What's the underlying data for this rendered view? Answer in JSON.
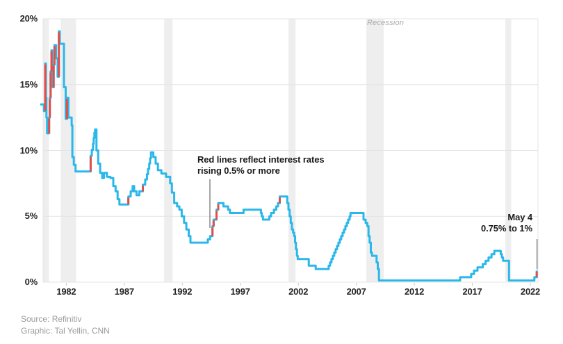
{
  "chart_data": {
    "type": "line",
    "subtype": "step",
    "title": "",
    "ylabel": "",
    "xlabel": "",
    "x_range": [
      1980,
      2022.66
    ],
    "y_range": [
      0,
      20
    ],
    "grid": true,
    "x_ticks": [
      1982,
      1987,
      1992,
      1997,
      2002,
      2007,
      2012,
      2017,
      2022
    ],
    "y_ticks": [
      {
        "value": 0,
        "label": "0%"
      },
      {
        "value": 5,
        "label": "5%"
      },
      {
        "value": 10,
        "label": "10%"
      },
      {
        "value": 15,
        "label": "15%"
      },
      {
        "value": 20,
        "label": "20%"
      }
    ],
    "red_rise_threshold": 0.5,
    "recessions": [
      [
        1980.0,
        1980.5
      ],
      [
        1981.52,
        1982.84
      ],
      [
        1990.44,
        1991.16
      ],
      [
        2001.16,
        2001.76
      ],
      [
        2007.87,
        2009.36
      ],
      [
        2019.85,
        2020.35
      ]
    ],
    "series": [
      {
        "name": "Interest rate",
        "points": [
          [
            1979.75,
            13.5
          ],
          [
            1980.07,
            13.0
          ],
          [
            1980.18,
            16.6
          ],
          [
            1980.24,
            14.0
          ],
          [
            1980.29,
            12.5
          ],
          [
            1980.34,
            11.3
          ],
          [
            1980.46,
            11.3
          ],
          [
            1980.52,
            12.5
          ],
          [
            1980.58,
            14.0
          ],
          [
            1980.65,
            16.0
          ],
          [
            1980.72,
            17.6
          ],
          [
            1980.78,
            16.2
          ],
          [
            1980.84,
            14.8
          ],
          [
            1980.91,
            16.5
          ],
          [
            1980.98,
            18.0
          ],
          [
            1981.12,
            17.0
          ],
          [
            1981.25,
            15.6
          ],
          [
            1981.36,
            19.05
          ],
          [
            1981.44,
            18.1
          ],
          [
            1981.8,
            14.8
          ],
          [
            1981.95,
            12.4
          ],
          [
            1982.06,
            14.0
          ],
          [
            1982.18,
            12.5
          ],
          [
            1982.46,
            11.9
          ],
          [
            1982.52,
            9.5
          ],
          [
            1982.65,
            8.9
          ],
          [
            1982.8,
            8.4
          ],
          [
            1983.9,
            8.4
          ],
          [
            1984.1,
            9.6
          ],
          [
            1984.2,
            10.05
          ],
          [
            1984.3,
            10.5
          ],
          [
            1984.36,
            10.95
          ],
          [
            1984.42,
            11.35
          ],
          [
            1984.48,
            11.6
          ],
          [
            1984.6,
            10.0
          ],
          [
            1984.75,
            9.0
          ],
          [
            1984.92,
            8.3
          ],
          [
            1985.1,
            7.9
          ],
          [
            1985.25,
            8.3
          ],
          [
            1985.5,
            8.0
          ],
          [
            1985.8,
            7.9
          ],
          [
            1986.05,
            7.3
          ],
          [
            1986.25,
            6.9
          ],
          [
            1986.42,
            6.3
          ],
          [
            1986.58,
            5.9
          ],
          [
            1987.25,
            5.9
          ],
          [
            1987.35,
            6.5
          ],
          [
            1987.55,
            6.9
          ],
          [
            1987.72,
            7.3
          ],
          [
            1987.85,
            6.9
          ],
          [
            1988.05,
            6.6
          ],
          [
            1988.3,
            6.9
          ],
          [
            1988.6,
            7.4
          ],
          [
            1988.8,
            7.8
          ],
          [
            1988.95,
            8.2
          ],
          [
            1989.05,
            8.6
          ],
          [
            1989.15,
            9.0
          ],
          [
            1989.22,
            9.4
          ],
          [
            1989.3,
            9.85
          ],
          [
            1989.5,
            9.5
          ],
          [
            1989.7,
            9.0
          ],
          [
            1989.9,
            8.5
          ],
          [
            1990.2,
            8.25
          ],
          [
            1990.6,
            8.0
          ],
          [
            1990.95,
            7.5
          ],
          [
            1991.1,
            6.8
          ],
          [
            1991.3,
            6.0
          ],
          [
            1991.55,
            5.75
          ],
          [
            1991.75,
            5.5
          ],
          [
            1991.95,
            5.0
          ],
          [
            1992.15,
            4.5
          ],
          [
            1992.35,
            4.0
          ],
          [
            1992.55,
            3.5
          ],
          [
            1992.7,
            3.0
          ],
          [
            1994.1,
            3.0
          ],
          [
            1994.2,
            3.25
          ],
          [
            1994.4,
            3.5
          ],
          [
            1994.6,
            4.25
          ],
          [
            1994.7,
            4.75
          ],
          [
            1994.95,
            5.5
          ],
          [
            1995.1,
            6.0
          ],
          [
            1995.55,
            5.75
          ],
          [
            1995.95,
            5.5
          ],
          [
            1996.1,
            5.25
          ],
          [
            1997.2,
            5.25
          ],
          [
            1997.28,
            5.5
          ],
          [
            1998.7,
            5.5
          ],
          [
            1998.78,
            5.25
          ],
          [
            1998.85,
            5.0
          ],
          [
            1998.95,
            4.75
          ],
          [
            1999.5,
            5.0
          ],
          [
            1999.65,
            5.25
          ],
          [
            1999.9,
            5.5
          ],
          [
            2000.1,
            5.75
          ],
          [
            2000.25,
            6.0
          ],
          [
            2000.4,
            6.5
          ],
          [
            2001.0,
            6.5
          ],
          [
            2001.05,
            6.0
          ],
          [
            2001.15,
            5.5
          ],
          [
            2001.25,
            5.0
          ],
          [
            2001.35,
            4.5
          ],
          [
            2001.45,
            4.0
          ],
          [
            2001.55,
            3.75
          ],
          [
            2001.65,
            3.5
          ],
          [
            2001.72,
            3.0
          ],
          [
            2001.8,
            2.5
          ],
          [
            2001.88,
            2.0
          ],
          [
            2001.95,
            1.75
          ],
          [
            2002.85,
            1.75
          ],
          [
            2002.9,
            1.25
          ],
          [
            2003.45,
            1.25
          ],
          [
            2003.5,
            1.0
          ],
          [
            2004.5,
            1.0
          ],
          [
            2004.62,
            1.25
          ],
          [
            2004.74,
            1.5
          ],
          [
            2004.86,
            1.75
          ],
          [
            2004.98,
            2.0
          ],
          [
            2005.1,
            2.25
          ],
          [
            2005.22,
            2.5
          ],
          [
            2005.34,
            2.75
          ],
          [
            2005.46,
            3.0
          ],
          [
            2005.58,
            3.25
          ],
          [
            2005.7,
            3.5
          ],
          [
            2005.82,
            3.75
          ],
          [
            2005.94,
            4.0
          ],
          [
            2006.06,
            4.25
          ],
          [
            2006.18,
            4.5
          ],
          [
            2006.3,
            4.75
          ],
          [
            2006.42,
            5.0
          ],
          [
            2006.5,
            5.25
          ],
          [
            2007.55,
            5.25
          ],
          [
            2007.62,
            4.75
          ],
          [
            2007.8,
            4.5
          ],
          [
            2007.95,
            4.25
          ],
          [
            2008.05,
            3.5
          ],
          [
            2008.15,
            3.0
          ],
          [
            2008.25,
            2.25
          ],
          [
            2008.35,
            2.0
          ],
          [
            2008.75,
            1.5
          ],
          [
            2008.85,
            1.0
          ],
          [
            2008.95,
            0.125
          ],
          [
            2015.9,
            0.125
          ],
          [
            2015.95,
            0.375
          ],
          [
            2016.9,
            0.625
          ],
          [
            2017.15,
            0.875
          ],
          [
            2017.45,
            1.125
          ],
          [
            2017.9,
            1.375
          ],
          [
            2018.15,
            1.625
          ],
          [
            2018.4,
            1.875
          ],
          [
            2018.65,
            2.125
          ],
          [
            2018.9,
            2.375
          ],
          [
            2019.35,
            2.375
          ],
          [
            2019.45,
            2.125
          ],
          [
            2019.55,
            1.875
          ],
          [
            2019.65,
            1.625
          ],
          [
            2020.1,
            1.625
          ],
          [
            2020.16,
            0.125
          ],
          [
            2022.28,
            0.125
          ],
          [
            2022.35,
            0.375
          ],
          [
            2022.55,
            0.875
          ]
        ]
      }
    ]
  },
  "annotations": {
    "red_note": "Red lines reflect interest rates\nrising 0.5% or more",
    "may4_note": "May 4\n0.75% to 1%",
    "recession_label": "Recession"
  },
  "colors": {
    "line": "#2ab7e9",
    "rise": "#e0504a",
    "recession_band": "#eeeeee",
    "grid": "#e4e4e4",
    "tick": "#c9c9c9",
    "pointer": "#6b6b6b"
  },
  "footer": {
    "source": "Source: Refinitiv",
    "credit": "Graphic: Tal Yellin, CNN"
  }
}
